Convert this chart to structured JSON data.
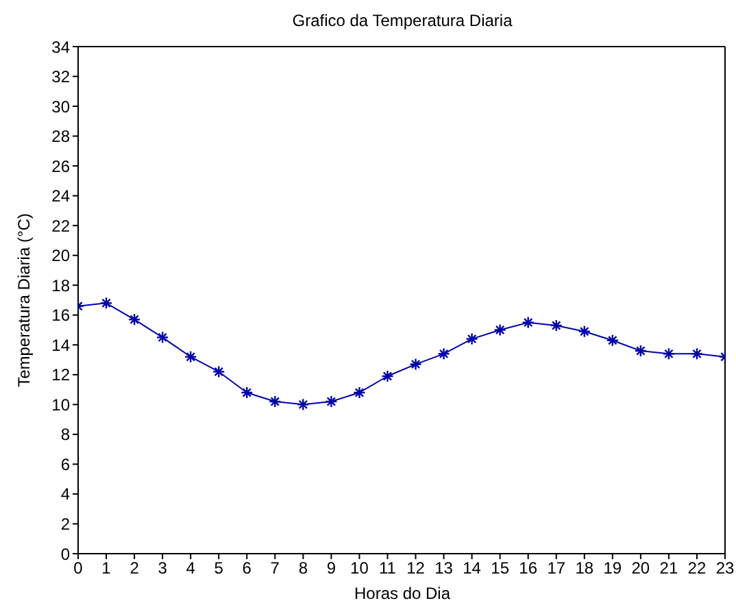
{
  "chart_data": {
    "type": "line",
    "title": "Grafico da Temperatura Diaria",
    "xlabel": "Horas do Dia",
    "ylabel": "Temperatura Diaria (°C)",
    "x": [
      0,
      1,
      2,
      3,
      4,
      5,
      6,
      7,
      8,
      9,
      10,
      11,
      12,
      13,
      14,
      15,
      16,
      17,
      18,
      19,
      20,
      21,
      22,
      23
    ],
    "series": [
      {
        "color": "#0000aa",
        "values": [
          16.6,
          16.8,
          15.7,
          14.5,
          13.2,
          12.2,
          10.8,
          10.2,
          10.0,
          10.2,
          10.8,
          11.9,
          12.7,
          13.4,
          14.4,
          15.0,
          15.5,
          15.3,
          14.9,
          14.3,
          13.6,
          13.4,
          13.4,
          13.2
        ]
      }
    ],
    "xlim": [
      0,
      23
    ],
    "xticks": [
      0,
      1,
      2,
      3,
      4,
      5,
      6,
      7,
      8,
      9,
      10,
      11,
      12,
      13,
      14,
      15,
      16,
      17,
      18,
      19,
      20,
      21,
      22,
      23
    ],
    "ylim": [
      0,
      34
    ],
    "yticks": [
      0,
      2,
      4,
      6,
      8,
      10,
      12,
      14,
      16,
      18,
      20,
      22,
      24,
      26,
      28,
      30,
      32,
      34
    ],
    "grid": false,
    "legend": false,
    "marker": "cross",
    "line_style": "solid"
  }
}
